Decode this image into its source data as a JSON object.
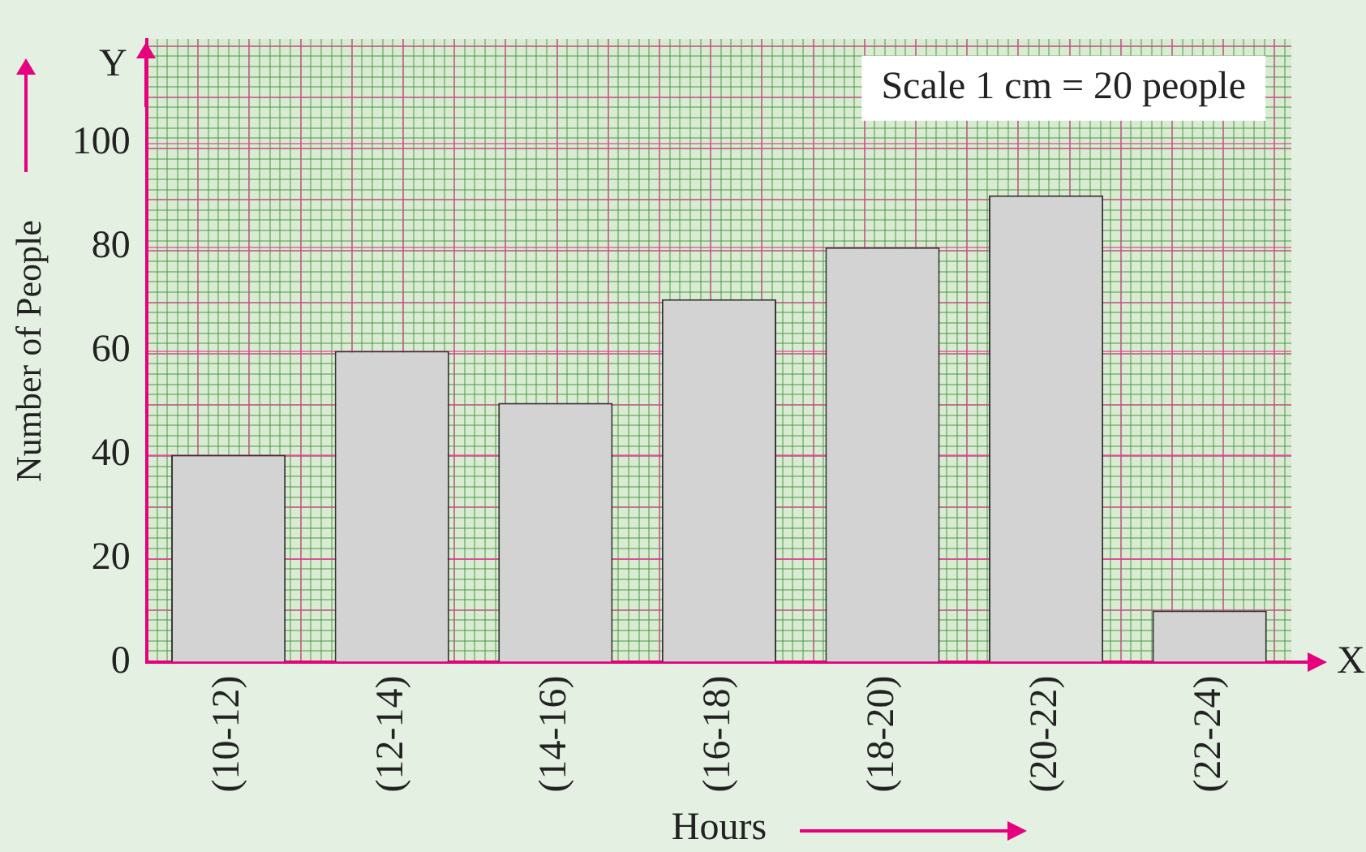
{
  "chart_data": {
    "type": "bar",
    "categories": [
      "(10-12)",
      "(12-14)",
      "(14-16)",
      "(16-18)",
      "(18-20)",
      "(20-22)",
      "(22-24)"
    ],
    "values": [
      40,
      60,
      50,
      70,
      80,
      90,
      10
    ],
    "color": "#d3d3d3",
    "xlabel": "Hours",
    "ylabel": "Number of People",
    "ylim": [
      0,
      120
    ],
    "yticks": [
      0,
      20,
      40,
      60,
      80,
      100
    ],
    "grid": "y",
    "annotations": [
      "Y",
      "X",
      "Scale 1 cm = 20 people"
    ]
  }
}
